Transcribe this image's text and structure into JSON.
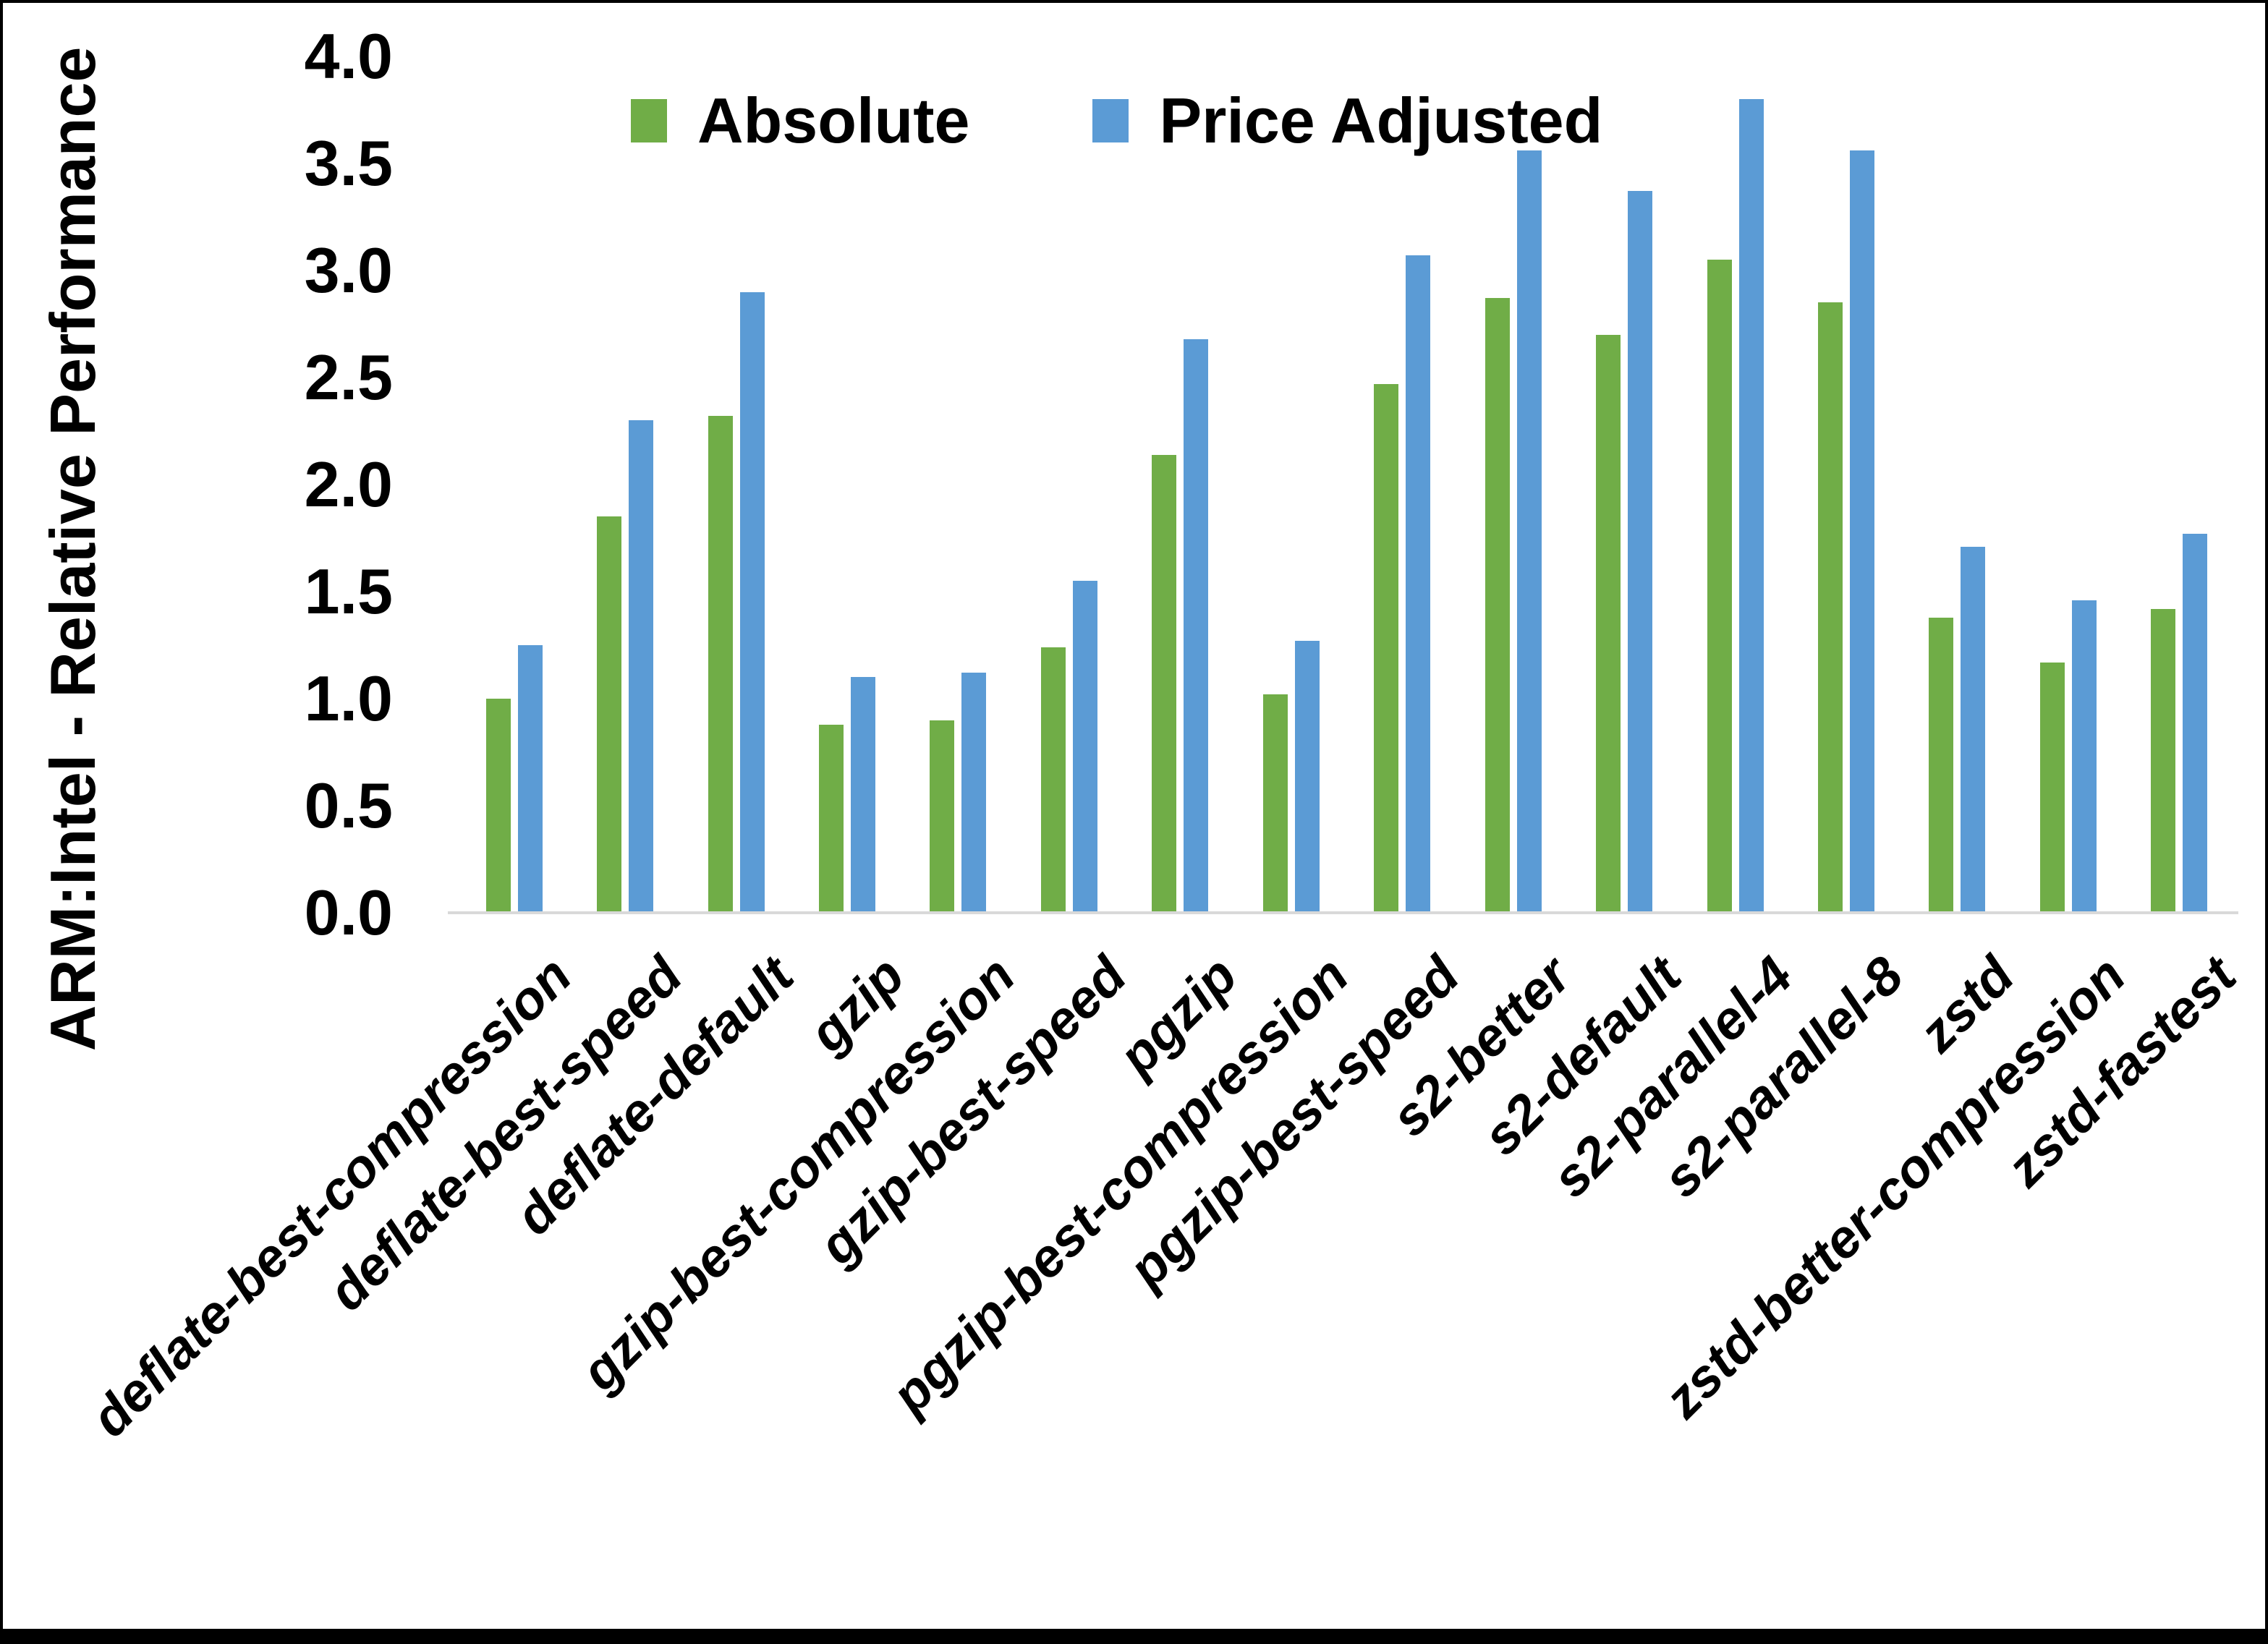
{
  "chart_data": {
    "type": "bar",
    "title": "",
    "ylabel": "ARM:Intel - Relative Performance",
    "xlabel": "",
    "ylim": [
      0.0,
      4.0
    ],
    "ytick_labels": [
      "0.0",
      "0.5",
      "1.0",
      "1.5",
      "2.0",
      "2.5",
      "3.0",
      "3.5",
      "4.0"
    ],
    "grid": false,
    "legend_position": "top",
    "axis_line_color": "#D9D9D9",
    "categories": [
      "deflate-best-compression",
      "deflate-best-speed",
      "deflate-default",
      "gzip",
      "gzip-best-compression",
      "gzip-best-speed",
      "pgzip",
      "pgzip-best-compression",
      "pgzip-best-speed",
      "s2-better",
      "s2-default",
      "s2-parallel-4",
      "s2-parallel-8",
      "zstd",
      "zstd-better-compression",
      "zstd-fastest"
    ],
    "series": [
      {
        "name": "Absolute",
        "color": "#70AD47",
        "values": [
          1.0,
          1.85,
          2.32,
          0.88,
          0.9,
          1.24,
          2.14,
          1.02,
          2.47,
          2.87,
          2.7,
          3.05,
          2.85,
          1.38,
          1.17,
          1.42
        ]
      },
      {
        "name": "Price Adjusted",
        "color": "#5B9BD5",
        "values": [
          1.25,
          2.3,
          2.9,
          1.1,
          1.12,
          1.55,
          2.68,
          1.27,
          3.07,
          3.56,
          3.37,
          3.8,
          3.56,
          1.71,
          1.46,
          1.77
        ]
      }
    ]
  }
}
